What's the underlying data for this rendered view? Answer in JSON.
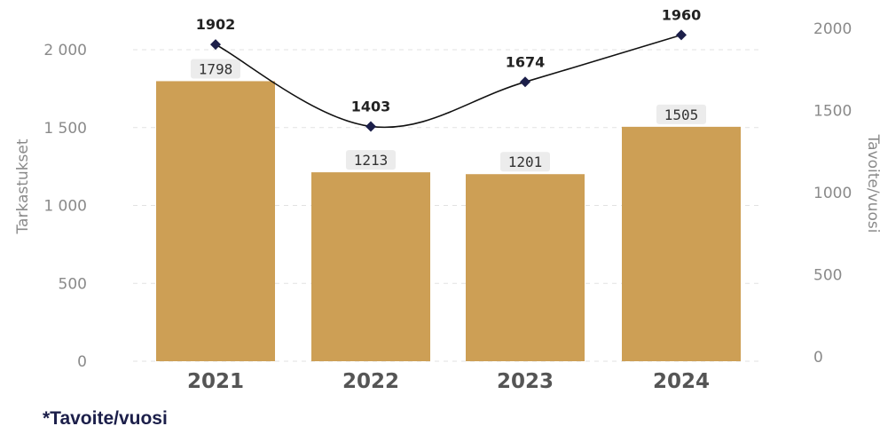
{
  "chart_data": {
    "type": "bar+line",
    "categories": [
      "2021",
      "2022",
      "2023",
      "2024"
    ],
    "bar_series": {
      "name": "Tarkastukset",
      "values": [
        1798,
        1213,
        1201,
        1505
      ],
      "color": "#cd9f55"
    },
    "line_series": {
      "name": "Tavoite/vuosi",
      "values": [
        1902,
        1403,
        1674,
        1960
      ],
      "color": "#1c1f4a"
    },
    "y_left": {
      "label": "Tarkastukset",
      "ticks": [
        0,
        500,
        1000,
        1500,
        2000
      ],
      "tick_labels": [
        "0",
        "500",
        "1 000",
        "1 500",
        "2 000"
      ],
      "range": [
        0,
        2000
      ]
    },
    "y_right": {
      "label": "Tavoite/vuosi",
      "ticks": [
        0,
        500,
        1000,
        1500,
        2000
      ],
      "tick_labels": [
        "0",
        "500",
        "1000",
        "1500",
        "2000"
      ],
      "range": [
        0,
        2000
      ]
    },
    "grid": true
  },
  "footnote": "*Tavoite/vuosi",
  "colors": {
    "bar": "#cd9f55",
    "line": "#1c1f4a",
    "axis_text": "#8a8a8a",
    "category_text": "#555555",
    "label_bg": "#ececec",
    "grid": "#e2e2e2"
  }
}
